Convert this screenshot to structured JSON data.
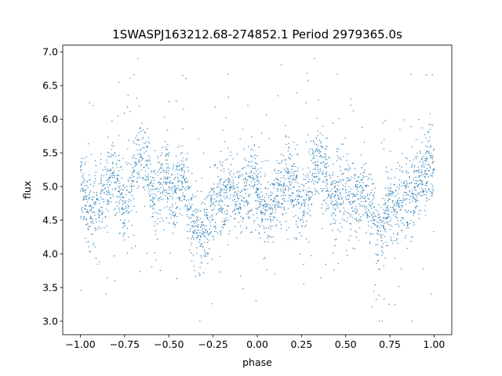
{
  "chart_data": {
    "type": "scatter",
    "title": "1SWASPJ163212.68-274852.1 Period 2979365.0s",
    "xlabel": "phase",
    "ylabel": "flux",
    "xlim": [
      -1.1,
      1.1
    ],
    "ylim": [
      2.8,
      7.1
    ],
    "xticks": [
      -1.0,
      -0.75,
      -0.5,
      -0.25,
      0.0,
      0.25,
      0.5,
      0.75,
      1.0
    ],
    "xtick_labels": [
      "−1.00",
      "−0.75",
      "−0.50",
      "−0.25",
      "0.00",
      "0.25",
      "0.50",
      "0.75",
      "1.00"
    ],
    "yticks": [
      3.0,
      3.5,
      4.0,
      4.5,
      5.0,
      5.5,
      6.0,
      6.5,
      7.0
    ],
    "ytick_labels": [
      "3.0",
      "3.5",
      "4.0",
      "4.5",
      "5.0",
      "5.5",
      "6.0",
      "6.5",
      "7.0"
    ],
    "grid": false,
    "legend": "none",
    "marker_color": "#1f77b4",
    "series": [
      {
        "x": [
          -1.0,
          -0.97,
          -0.95,
          -0.93,
          -0.9,
          -0.88,
          -0.85,
          -0.83,
          -0.82,
          -0.8,
          -0.78,
          -0.75,
          -0.72,
          -0.7,
          -0.68,
          -0.65,
          -0.62,
          -0.6,
          -0.58,
          -0.55,
          -0.52,
          -0.5,
          -0.48,
          -0.45,
          -0.42,
          -0.4,
          -0.38,
          -0.35,
          -0.32,
          -0.3,
          -0.28,
          -0.25,
          -0.22,
          -0.2,
          -0.18,
          -0.15,
          -0.12,
          -0.1,
          -0.08,
          -0.05,
          -0.02,
          0.0,
          0.02,
          0.05,
          0.08,
          0.1,
          0.12,
          0.15,
          0.18,
          0.2,
          0.22,
          0.25,
          0.28,
          0.3,
          0.32,
          0.35,
          0.38,
          0.4,
          0.42,
          0.45,
          0.48,
          0.5,
          0.52,
          0.55,
          0.58,
          0.6,
          0.62,
          0.65,
          0.68,
          0.7,
          0.72,
          0.75,
          0.78,
          0.8,
          0.82,
          0.85,
          0.88,
          0.9,
          0.92,
          0.95,
          0.98,
          1.0
        ],
        "y": [
          5.1,
          4.8,
          4.7,
          4.6,
          4.7,
          4.8,
          4.9,
          5.1,
          5.3,
          5.0,
          4.9,
          4.7,
          4.8,
          5.2,
          5.4,
          5.5,
          5.3,
          5.0,
          4.8,
          5.0,
          5.2,
          5.0,
          4.8,
          4.9,
          5.1,
          4.9,
          4.6,
          4.4,
          4.2,
          4.3,
          4.5,
          4.7,
          4.8,
          4.9,
          4.9,
          5.0,
          4.8,
          4.7,
          4.8,
          5.0,
          5.2,
          5.1,
          4.7,
          4.6,
          4.6,
          4.8,
          4.9,
          5.0,
          5.2,
          5.0,
          4.8,
          4.7,
          4.9,
          5.1,
          5.3,
          5.4,
          5.2,
          5.0,
          4.8,
          4.9,
          5.0,
          5.1,
          4.9,
          4.8,
          4.9,
          5.0,
          4.8,
          4.6,
          4.4,
          4.3,
          4.5,
          4.7,
          4.8,
          4.9,
          4.8,
          4.7,
          4.9,
          5.0,
          5.1,
          5.2,
          5.3,
          5.2
        ]
      }
    ]
  }
}
